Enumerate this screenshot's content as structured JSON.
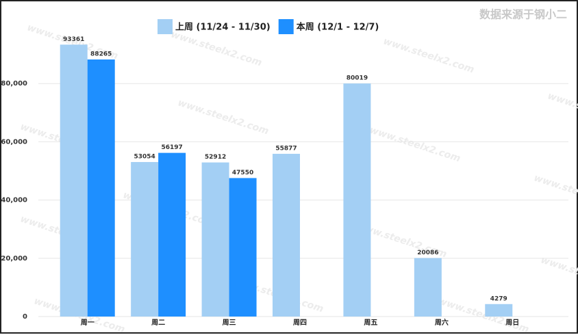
{
  "chart_data": {
    "type": "bar",
    "source_note": "数据来源于钢小二",
    "watermark": "www.steelx2.com",
    "categories": [
      "周一",
      "周二",
      "周三",
      "周四",
      "周五",
      "周六",
      "周日"
    ],
    "series": [
      {
        "name": "上周 (11/24 - 11/30)",
        "color": "#a3cff4",
        "values": [
          93361,
          53054,
          52912,
          55877,
          80019,
          20086,
          4279
        ]
      },
      {
        "name": "本周 (12/1 - 12/7)",
        "color": "#1e8fff",
        "values": [
          88265,
          56197,
          47550,
          null,
          null,
          null,
          null
        ]
      }
    ],
    "ylim": [
      0,
      100000
    ],
    "yticks": [
      0,
      {
        "value": 20000,
        "label": "20,000"
      },
      {
        "value": 40000,
        "label": "40,000"
      },
      {
        "value": 60000,
        "label": "60,000"
      },
      {
        "value": 80000,
        "label": "80,000"
      }
    ],
    "grid": true,
    "legend": "top"
  }
}
